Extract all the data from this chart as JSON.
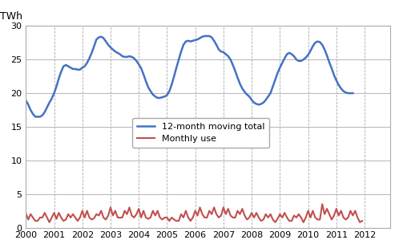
{
  "ylabel": "TWh",
  "xlim_start": 2000.0,
  "xlim_end": 2012.92,
  "ylim": [
    0,
    30
  ],
  "yticks": [
    0,
    5,
    10,
    15,
    20,
    25,
    30
  ],
  "xtick_years": [
    2000,
    2001,
    2002,
    2003,
    2004,
    2005,
    2006,
    2007,
    2008,
    2009,
    2010,
    2011,
    2012
  ],
  "moving_total_color": "#4472C4",
  "monthly_color": "#C0504D",
  "legend_moving": "12-month moving total",
  "legend_monthly": "Monthly use",
  "moving_total": [
    18.9,
    18.3,
    17.5,
    16.9,
    16.5,
    16.5,
    16.5,
    16.7,
    17.2,
    17.9,
    18.6,
    19.2,
    20.0,
    21.0,
    22.2,
    23.2,
    24.0,
    24.2,
    24.0,
    23.8,
    23.6,
    23.6,
    23.5,
    23.5,
    23.8,
    24.0,
    24.5,
    25.2,
    26.0,
    27.0,
    28.0,
    28.3,
    28.4,
    28.2,
    27.7,
    27.2,
    26.8,
    26.5,
    26.2,
    26.0,
    25.8,
    25.5,
    25.4,
    25.4,
    25.5,
    25.4,
    25.2,
    24.8,
    24.3,
    23.7,
    22.8,
    21.8,
    20.9,
    20.3,
    19.8,
    19.5,
    19.3,
    19.3,
    19.4,
    19.5,
    19.7,
    20.3,
    21.3,
    22.5,
    23.8,
    25.0,
    26.2,
    27.2,
    27.7,
    27.8,
    27.7,
    27.8,
    27.9,
    28.0,
    28.2,
    28.4,
    28.5,
    28.5,
    28.5,
    28.3,
    27.8,
    27.2,
    26.5,
    26.2,
    26.1,
    25.8,
    25.5,
    25.0,
    24.2,
    23.3,
    22.3,
    21.4,
    20.7,
    20.2,
    19.8,
    19.5,
    19.0,
    18.6,
    18.4,
    18.3,
    18.4,
    18.6,
    19.0,
    19.5,
    20.0,
    21.0,
    22.0,
    23.0,
    23.8,
    24.5,
    25.2,
    25.8,
    26.0,
    25.8,
    25.5,
    25.0,
    24.8,
    24.8,
    25.0,
    25.3,
    25.7,
    26.3,
    27.0,
    27.5,
    27.7,
    27.6,
    27.2,
    26.5,
    25.6,
    24.6,
    23.7,
    22.7,
    21.9,
    21.2,
    20.7,
    20.3,
    20.1,
    20.0,
    20.0,
    20.0
  ],
  "monthly_use": [
    2.1,
    1.2,
    2.0,
    1.5,
    1.0,
    1.0,
    1.5,
    1.5,
    2.2,
    1.5,
    0.8,
    1.5,
    2.2,
    1.3,
    2.2,
    1.5,
    1.0,
    1.2,
    2.0,
    1.5,
    2.0,
    1.5,
    1.0,
    1.5,
    2.5,
    1.5,
    2.5,
    1.5,
    1.2,
    1.4,
    2.0,
    1.8,
    2.5,
    1.5,
    1.2,
    1.8,
    3.0,
    1.8,
    2.5,
    1.5,
    1.5,
    1.5,
    2.5,
    2.0,
    3.0,
    1.8,
    1.5,
    2.0,
    2.8,
    1.5,
    2.5,
    1.5,
    1.3,
    1.5,
    2.5,
    1.8,
    2.5,
    1.5,
    1.2,
    1.5,
    1.5,
    1.0,
    1.5,
    1.2,
    1.0,
    1.0,
    2.0,
    1.5,
    2.5,
    1.5,
    1.0,
    1.5,
    2.5,
    1.8,
    3.0,
    2.0,
    1.5,
    1.5,
    2.5,
    2.0,
    3.0,
    2.0,
    1.5,
    1.8,
    3.0,
    2.0,
    2.8,
    1.8,
    1.5,
    1.5,
    2.5,
    2.0,
    2.8,
    1.8,
    1.2,
    1.5,
    2.2,
    1.5,
    2.2,
    1.5,
    1.0,
    1.2,
    2.0,
    1.5,
    2.0,
    1.2,
    0.8,
    1.3,
    2.0,
    1.5,
    2.2,
    1.5,
    1.0,
    1.0,
    1.8,
    1.5,
    2.0,
    1.5,
    0.8,
    1.5,
    2.5,
    1.5,
    2.5,
    1.5,
    1.2,
    1.2,
    3.5,
    2.0,
    2.8,
    2.0,
    1.2,
    1.8,
    2.8,
    1.8,
    2.5,
    1.5,
    1.2,
    1.5,
    2.5,
    1.8,
    2.5,
    1.5,
    0.8,
    1.0
  ]
}
